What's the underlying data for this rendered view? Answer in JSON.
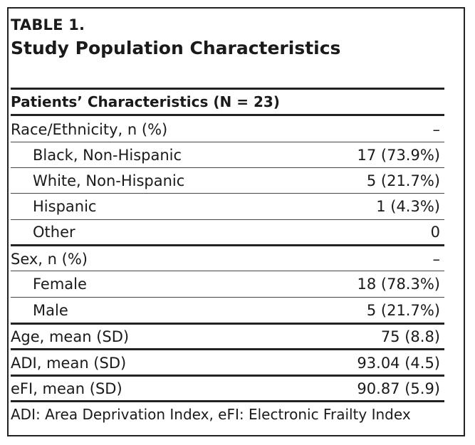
{
  "table": {
    "number": "TABLE 1.",
    "title": "Study Population Characteristics",
    "header": "Patients’ Characteristics (N = 23)",
    "rows": [
      {
        "label": "Race/Ethnicity, n (%)",
        "value": "–"
      },
      {
        "label": "Black, Non-Hispanic",
        "value": "17 (73.9%)"
      },
      {
        "label": "White, Non-Hispanic",
        "value": "5 (21.7%)"
      },
      {
        "label": "Hispanic",
        "value": "1 (4.3%)"
      },
      {
        "label": "Other",
        "value": "0"
      },
      {
        "label": "Sex, n (%)",
        "value": "–"
      },
      {
        "label": "Female",
        "value": "18 (78.3%)"
      },
      {
        "label": "Male",
        "value": "5 (21.7%)"
      },
      {
        "label": "Age, mean (SD)",
        "value": "75 (8.8)"
      },
      {
        "label": "ADI, mean (SD)",
        "value": "93.04 (4.5)"
      },
      {
        "label": "eFI, mean (SD)",
        "value": "90.87 (5.9)"
      }
    ],
    "footnote": "ADI: Area Deprivation Index, eFI: Electronic Frailty Index"
  }
}
